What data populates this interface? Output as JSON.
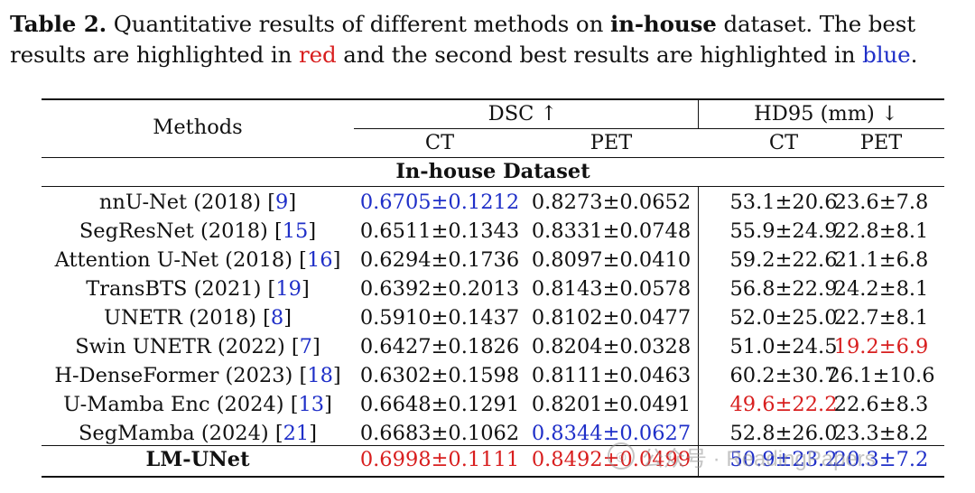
{
  "caption": {
    "label": "Table 2.",
    "text_1": " Quantitative results of different methods on ",
    "bold_word": "in-house",
    "text_2": " dataset. The best results are highlighted in ",
    "red_word": "red",
    "text_3": " and the second best results are highlighted in ",
    "blue_word": "blue",
    "text_4": "."
  },
  "colors": {
    "best": "#d81e1e",
    "second": "#1f2fc8",
    "text": "#111111"
  },
  "table": {
    "methods_header": "Methods",
    "groups": [
      {
        "label": "DSC ↑",
        "subcols": [
          "CT",
          "PET"
        ]
      },
      {
        "label": "HD95 (mm) ↓",
        "subcols": [
          "CT",
          "PET"
        ]
      }
    ],
    "section_title": "In-house Dataset",
    "rows": [
      {
        "method": "nnU-Net (2018) ",
        "ref": "9",
        "cells": [
          {
            "value": "0.6705±0.1212",
            "rank": "second"
          },
          {
            "value": "0.8273±0.0652",
            "rank": ""
          },
          {
            "value": "53.1±20.6",
            "rank": ""
          },
          {
            "value": "23.6±7.8",
            "rank": ""
          }
        ]
      },
      {
        "method": "SegResNet (2018) ",
        "ref": "15",
        "cells": [
          {
            "value": "0.6511±0.1343",
            "rank": ""
          },
          {
            "value": "0.8331±0.0748",
            "rank": ""
          },
          {
            "value": "55.9±24.9",
            "rank": ""
          },
          {
            "value": "22.8±8.1",
            "rank": ""
          }
        ]
      },
      {
        "method": "Attention U-Net (2018) ",
        "ref": "16",
        "cells": [
          {
            "value": "0.6294±0.1736",
            "rank": ""
          },
          {
            "value": "0.8097±0.0410",
            "rank": ""
          },
          {
            "value": "59.2±22.6",
            "rank": ""
          },
          {
            "value": "21.1±6.8",
            "rank": ""
          }
        ]
      },
      {
        "method": "TransBTS (2021) ",
        "ref": "19",
        "cells": [
          {
            "value": "0.6392±0.2013",
            "rank": ""
          },
          {
            "value": "0.8143±0.0578",
            "rank": ""
          },
          {
            "value": "56.8±22.9",
            "rank": ""
          },
          {
            "value": "24.2±8.1",
            "rank": ""
          }
        ]
      },
      {
        "method": "UNETR (2018) ",
        "ref": "8",
        "cells": [
          {
            "value": "0.5910±0.1437",
            "rank": ""
          },
          {
            "value": "0.8102±0.0477",
            "rank": ""
          },
          {
            "value": "52.0±25.0",
            "rank": ""
          },
          {
            "value": "22.7±8.1",
            "rank": ""
          }
        ]
      },
      {
        "method": "Swin UNETR (2022) ",
        "ref": "7",
        "cells": [
          {
            "value": "0.6427±0.1826",
            "rank": ""
          },
          {
            "value": "0.8204±0.0328",
            "rank": ""
          },
          {
            "value": "51.0±24.5",
            "rank": ""
          },
          {
            "value": "19.2±6.9",
            "rank": "best"
          }
        ]
      },
      {
        "method": "H-DenseFormer (2023) ",
        "ref": "18",
        "cells": [
          {
            "value": "0.6302±0.1598",
            "rank": ""
          },
          {
            "value": "0.8111±0.0463",
            "rank": ""
          },
          {
            "value": "60.2±30.7",
            "rank": ""
          },
          {
            "value": "26.1±10.6",
            "rank": ""
          }
        ]
      },
      {
        "method": "U-Mamba Enc (2024) ",
        "ref": "13",
        "cells": [
          {
            "value": "0.6648±0.1291",
            "rank": ""
          },
          {
            "value": "0.8201±0.0491",
            "rank": ""
          },
          {
            "value": "49.6±22.2",
            "rank": "best"
          },
          {
            "value": "22.6±8.3",
            "rank": ""
          }
        ]
      },
      {
        "method": "SegMamba (2024) ",
        "ref": "21",
        "cells": [
          {
            "value": "0.6683±0.1062",
            "rank": ""
          },
          {
            "value": "0.8344±0.0627",
            "rank": "second"
          },
          {
            "value": "52.8±26.0",
            "rank": ""
          },
          {
            "value": "23.3±8.2",
            "rank": ""
          }
        ]
      }
    ],
    "final_row": {
      "method": "LM-UNet",
      "cells": [
        {
          "value": "0.6998±0.1111",
          "rank": "best"
        },
        {
          "value": "0.8492±0.0499",
          "rank": "best"
        },
        {
          "value": "50.9±23.2",
          "rank": "second"
        },
        {
          "value": "20.3±7.2",
          "rank": "second"
        }
      ]
    }
  },
  "watermark": {
    "icon": "wechat-icon",
    "text": "公众号 · ReadingPapers"
  }
}
